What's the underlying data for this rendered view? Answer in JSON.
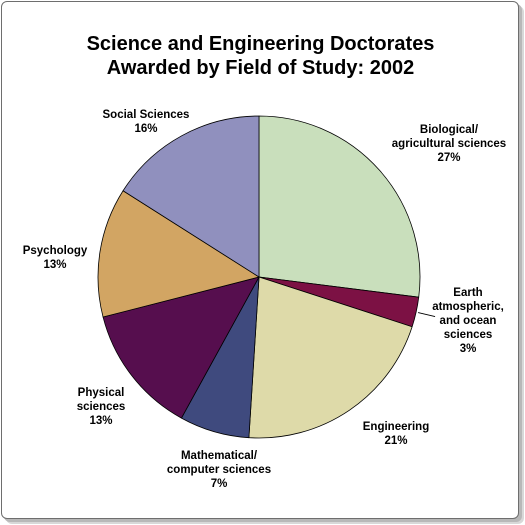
{
  "chart_data": {
    "type": "pie",
    "title": "Science and Engineering Doctorates Awarded by Field of Study: 2002",
    "title_lines": [
      "Science and Engineering Doctorates",
      "Awarded by Field of Study: 2002"
    ],
    "start_angle_deg": 0,
    "direction": "clockwise",
    "border_color": "#000000",
    "slices": [
      {
        "label": "Biological/ agricultural sciences",
        "label_lines": [
          "Biological/",
          "agricultural sciences"
        ],
        "value": 27,
        "value_label": "27%",
        "color": "#c9dfbc"
      },
      {
        "label": "Earth atmospheric, and ocean sciences",
        "label_lines": [
          "Earth",
          "atmospheric,",
          "and ocean",
          "sciences"
        ],
        "value": 3,
        "value_label": "3%",
        "color": "#7c1144"
      },
      {
        "label": "Engineering",
        "label_lines": [
          "Engineering"
        ],
        "value": 21,
        "value_label": "21%",
        "color": "#dedaa9"
      },
      {
        "label": "Mathematical/ computer sciences",
        "label_lines": [
          "Mathematical/",
          "computer sciences"
        ],
        "value": 7,
        "value_label": "7%",
        "color": "#3f4a7e"
      },
      {
        "label": "Physical sciences",
        "label_lines": [
          "Physical",
          "sciences"
        ],
        "value": 13,
        "value_label": "13%",
        "color": "#560e4e"
      },
      {
        "label": "Psychology",
        "label_lines": [
          "Psychology"
        ],
        "value": 13,
        "value_label": "13%",
        "color": "#d2a563"
      },
      {
        "label": "Social Sciences",
        "label_lines": [
          "Social Sciences"
        ],
        "value": 16,
        "value_label": "16%",
        "color": "#9090be"
      }
    ]
  }
}
